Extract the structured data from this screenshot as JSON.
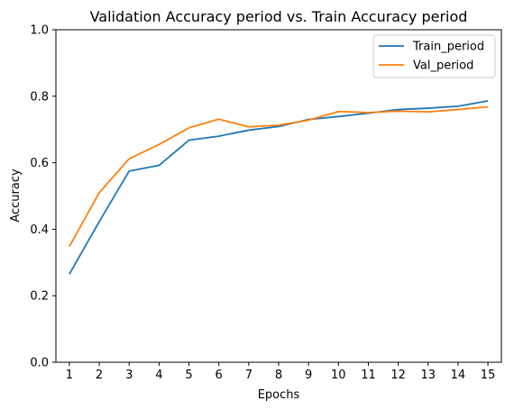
{
  "chart_data": {
    "type": "line",
    "title": "Validation Accuracy period vs. Train Accuracy period",
    "xlabel": "Epochs",
    "ylabel": "Accuracy",
    "x": [
      1,
      2,
      3,
      4,
      5,
      6,
      7,
      8,
      9,
      10,
      11,
      12,
      13,
      14,
      15
    ],
    "xlim": [
      0.55,
      15.45
    ],
    "ylim": [
      0.0,
      1.0
    ],
    "yticks": [
      "0.0",
      "0.2",
      "0.4",
      "0.6",
      "0.8",
      "1.0"
    ],
    "yticks_values": [
      0.0,
      0.2,
      0.4,
      0.6,
      0.8,
      1.0
    ],
    "grid": false,
    "legend": "top-right",
    "series": [
      {
        "name": "Train_period",
        "color": "#1f77b4",
        "values": [
          0.265,
          0.423,
          0.575,
          0.592,
          0.668,
          0.68,
          0.698,
          0.709,
          0.73,
          0.739,
          0.749,
          0.76,
          0.764,
          0.77,
          0.786
        ]
      },
      {
        "name": "Val_period",
        "color": "#ff7f0e",
        "values": [
          0.348,
          0.51,
          0.612,
          0.655,
          0.705,
          0.731,
          0.708,
          0.713,
          0.728,
          0.754,
          0.751,
          0.755,
          0.753,
          0.76,
          0.768
        ]
      }
    ]
  }
}
